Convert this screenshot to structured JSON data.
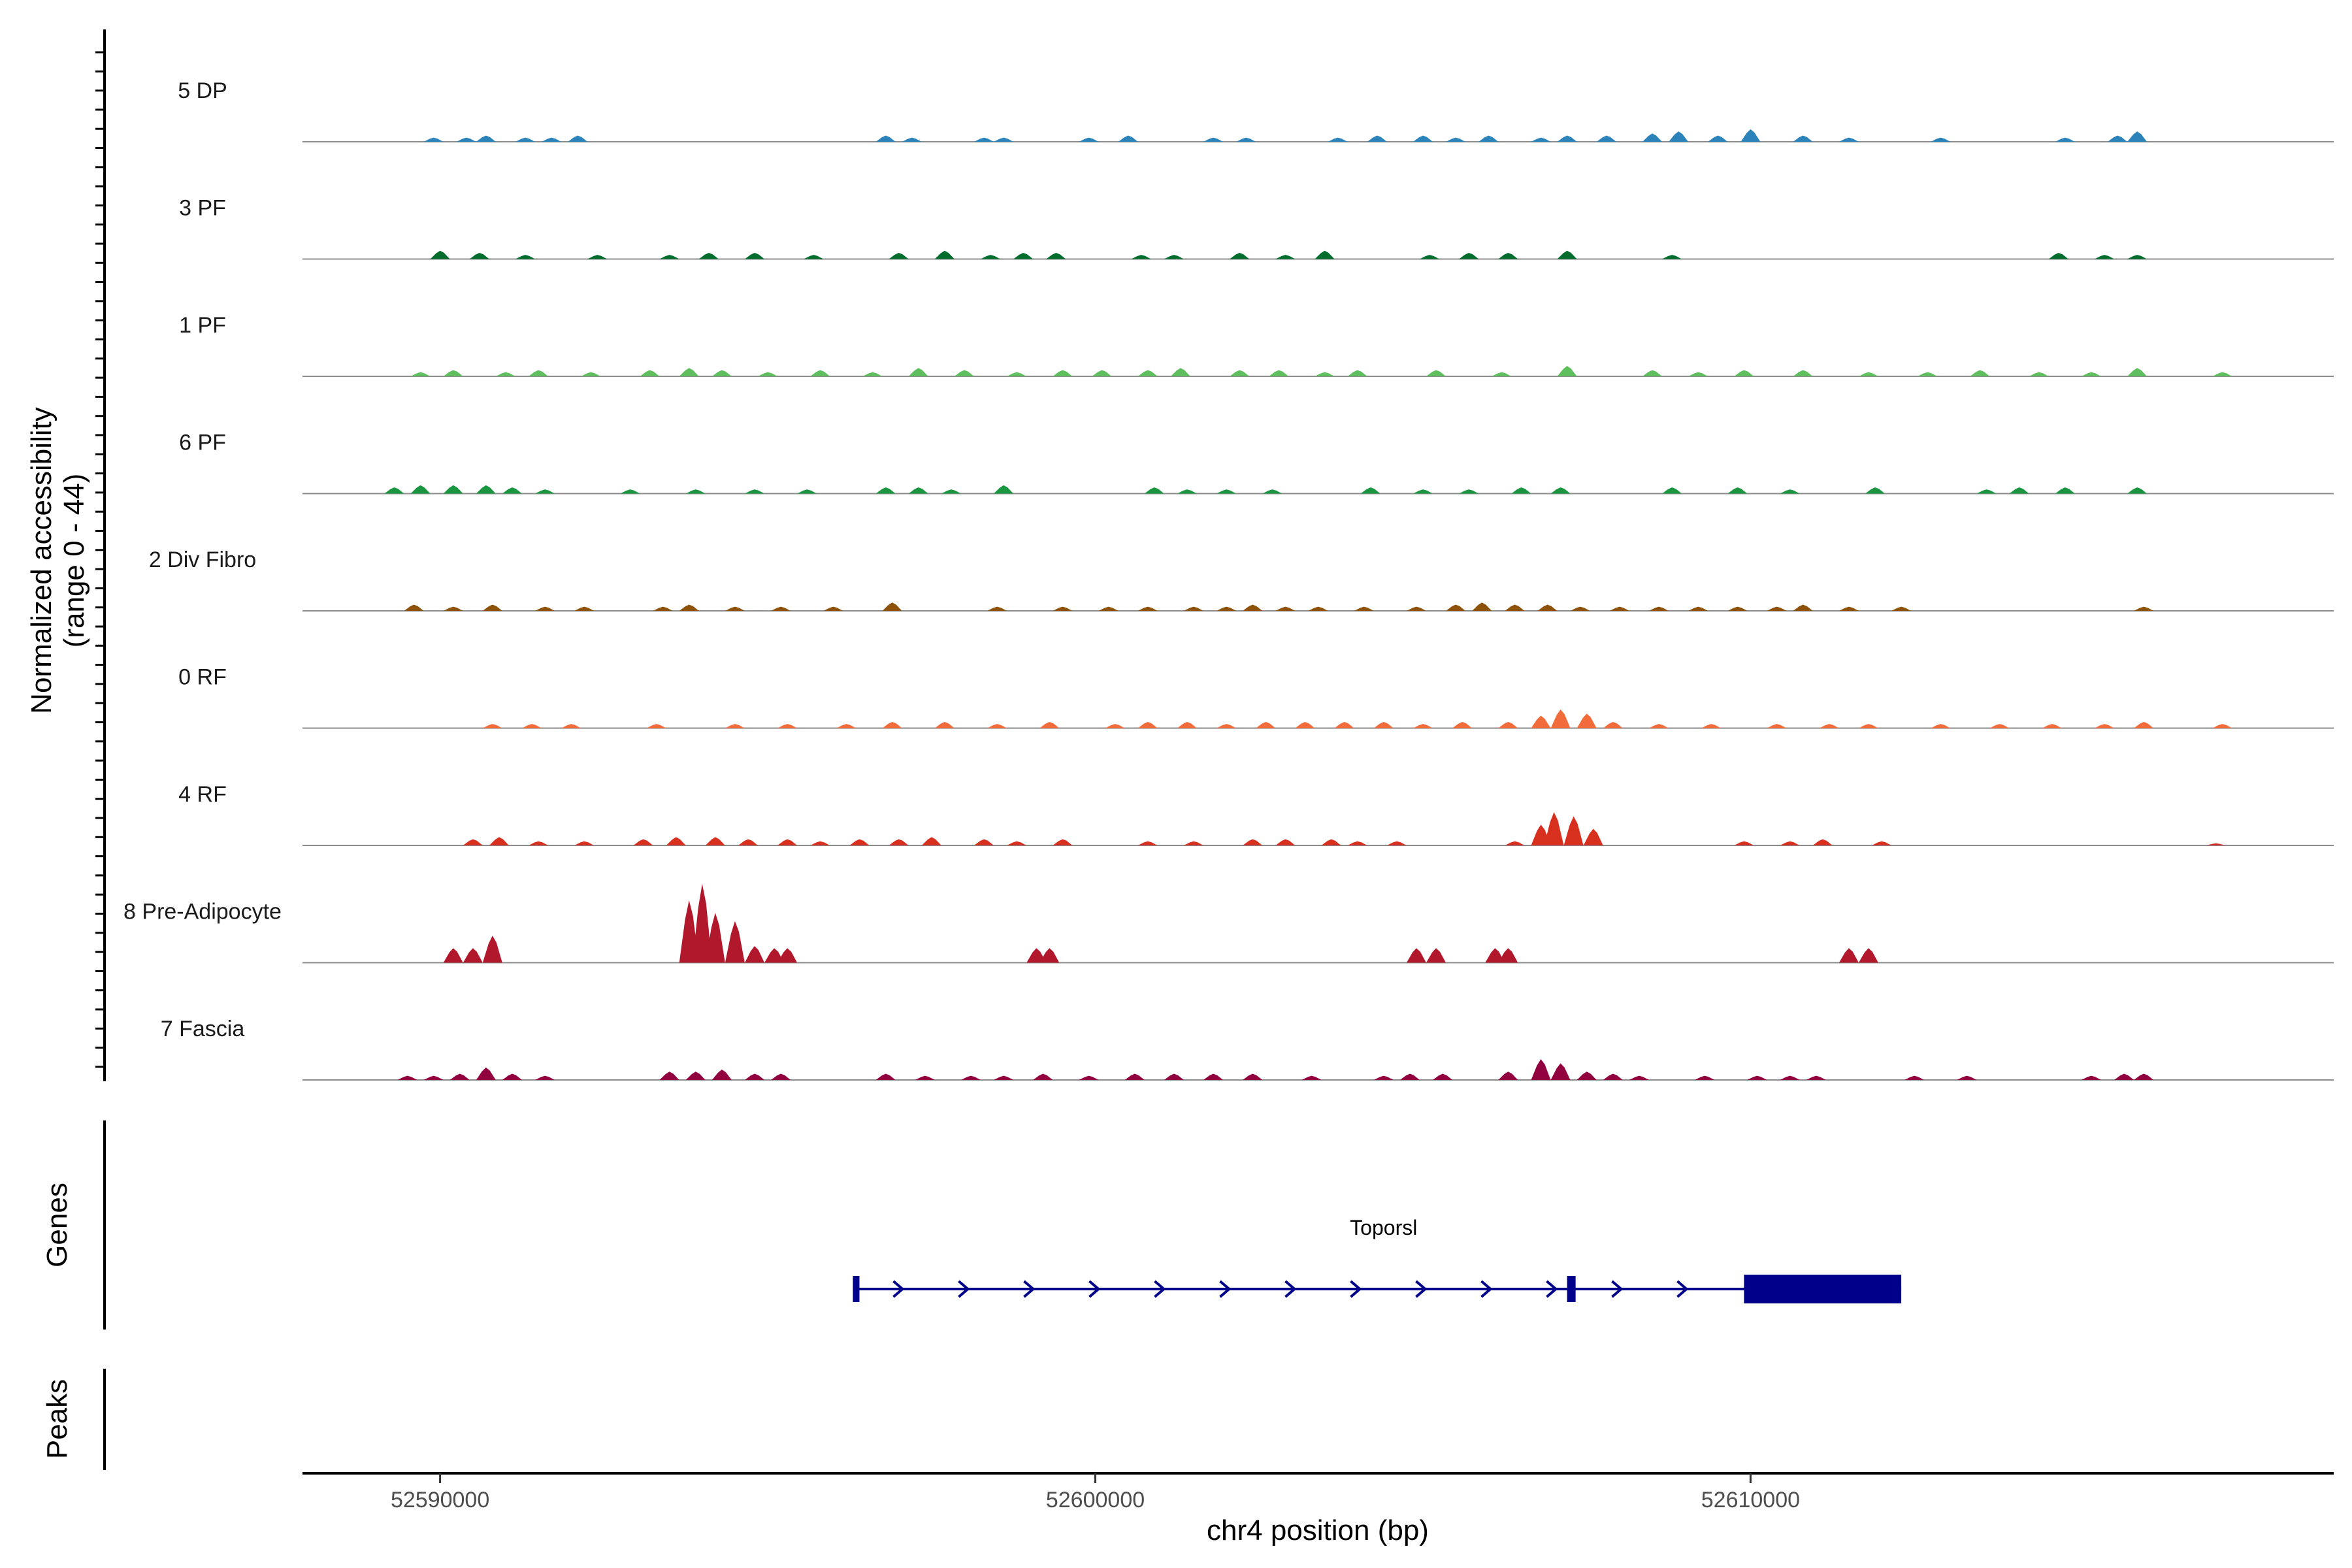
{
  "chart_data": {
    "type": "coverage",
    "y_axis_title_line1": "Normalized accessibility",
    "y_axis_title_line2": "(range 0 - 44)",
    "ylim": [
      0,
      44
    ],
    "x_axis_title": "chr4 position (bp)",
    "xlim": [
      52587900,
      52618900
    ],
    "x_ticks": [
      52590000,
      52600000,
      52610000
    ],
    "x_tick_labels": [
      "52590000",
      "52600000",
      "52610000"
    ],
    "genes_label": "Genes",
    "peaks_label": "Peaks",
    "tracks": [
      {
        "name": "5 DP",
        "color": "#2b83ba",
        "peaks": [
          [
            52589900,
            2
          ],
          [
            52590400,
            2
          ],
          [
            52590700,
            3
          ],
          [
            52591300,
            2
          ],
          [
            52591700,
            2
          ],
          [
            52592100,
            3
          ],
          [
            52596800,
            3
          ],
          [
            52597200,
            2
          ],
          [
            52598300,
            2
          ],
          [
            52598600,
            2
          ],
          [
            52599900,
            2
          ],
          [
            52600500,
            3
          ],
          [
            52601800,
            2
          ],
          [
            52602300,
            2
          ],
          [
            52603700,
            2
          ],
          [
            52604300,
            3
          ],
          [
            52605000,
            3
          ],
          [
            52605500,
            2
          ],
          [
            52606000,
            3
          ],
          [
            52606800,
            2
          ],
          [
            52607200,
            3
          ],
          [
            52607800,
            3
          ],
          [
            52608500,
            4
          ],
          [
            52608900,
            5
          ],
          [
            52609500,
            3
          ],
          [
            52610000,
            6
          ],
          [
            52610800,
            3
          ],
          [
            52611500,
            2
          ],
          [
            52612900,
            2
          ],
          [
            52614800,
            2
          ],
          [
            52615600,
            3
          ],
          [
            52615900,
            5
          ]
        ]
      },
      {
        "name": "3 PF",
        "color": "#006d2c",
        "peaks": [
          [
            52590000,
            4
          ],
          [
            52590600,
            3
          ],
          [
            52591300,
            2
          ],
          [
            52592400,
            2
          ],
          [
            52593500,
            2
          ],
          [
            52594100,
            3
          ],
          [
            52594800,
            3
          ],
          [
            52595700,
            2
          ],
          [
            52597000,
            3
          ],
          [
            52597700,
            4
          ],
          [
            52598400,
            2
          ],
          [
            52598900,
            3
          ],
          [
            52599400,
            3
          ],
          [
            52600700,
            2
          ],
          [
            52601200,
            2
          ],
          [
            52602200,
            3
          ],
          [
            52602900,
            2
          ],
          [
            52603500,
            4
          ],
          [
            52605100,
            2
          ],
          [
            52605700,
            3
          ],
          [
            52606300,
            3
          ],
          [
            52607200,
            4
          ],
          [
            52608800,
            2
          ],
          [
            52614700,
            3
          ],
          [
            52615400,
            2
          ],
          [
            52615900,
            2
          ]
        ]
      },
      {
        "name": "1 PF",
        "color": "#5fbf5f",
        "peaks": [
          [
            52589700,
            2
          ],
          [
            52590200,
            3
          ],
          [
            52591000,
            2
          ],
          [
            52591500,
            3
          ],
          [
            52592300,
            2
          ],
          [
            52593200,
            3
          ],
          [
            52593800,
            4
          ],
          [
            52594300,
            3
          ],
          [
            52595000,
            2
          ],
          [
            52595800,
            3
          ],
          [
            52596600,
            2
          ],
          [
            52597300,
            4
          ],
          [
            52598000,
            3
          ],
          [
            52598800,
            2
          ],
          [
            52599500,
            3
          ],
          [
            52600100,
            3
          ],
          [
            52600800,
            3
          ],
          [
            52601300,
            4
          ],
          [
            52602200,
            3
          ],
          [
            52602800,
            3
          ],
          [
            52603500,
            2
          ],
          [
            52604000,
            3
          ],
          [
            52605200,
            3
          ],
          [
            52606200,
            2
          ],
          [
            52607200,
            5
          ],
          [
            52608500,
            3
          ],
          [
            52609200,
            2
          ],
          [
            52609900,
            3
          ],
          [
            52610800,
            3
          ],
          [
            52611800,
            2
          ],
          [
            52612700,
            2
          ],
          [
            52613500,
            3
          ],
          [
            52614400,
            2
          ],
          [
            52615200,
            2
          ],
          [
            52615900,
            4
          ],
          [
            52617200,
            2
          ]
        ]
      },
      {
        "name": "6 PF",
        "color": "#1a9641",
        "peaks": [
          [
            52589300,
            3
          ],
          [
            52589700,
            4
          ],
          [
            52590200,
            4
          ],
          [
            52590700,
            4
          ],
          [
            52591100,
            3
          ],
          [
            52591600,
            2
          ],
          [
            52592900,
            2
          ],
          [
            52593900,
            2
          ],
          [
            52594800,
            2
          ],
          [
            52595600,
            2
          ],
          [
            52596800,
            3
          ],
          [
            52597300,
            3
          ],
          [
            52597800,
            2
          ],
          [
            52598600,
            4
          ],
          [
            52600900,
            3
          ],
          [
            52601400,
            2
          ],
          [
            52602000,
            2
          ],
          [
            52602700,
            2
          ],
          [
            52604200,
            3
          ],
          [
            52605000,
            2
          ],
          [
            52605700,
            2
          ],
          [
            52606500,
            3
          ],
          [
            52607100,
            3
          ],
          [
            52608800,
            3
          ],
          [
            52609800,
            3
          ],
          [
            52610600,
            2
          ],
          [
            52611900,
            3
          ],
          [
            52613600,
            2
          ],
          [
            52614100,
            3
          ],
          [
            52614800,
            3
          ],
          [
            52615900,
            3
          ]
        ]
      },
      {
        "name": "2 Div Fibro",
        "color": "#8c510a",
        "peaks": [
          [
            52589600,
            3
          ],
          [
            52590200,
            2
          ],
          [
            52590800,
            3
          ],
          [
            52591600,
            2
          ],
          [
            52592200,
            2
          ],
          [
            52593400,
            2
          ],
          [
            52593800,
            3
          ],
          [
            52594500,
            2
          ],
          [
            52595200,
            2
          ],
          [
            52596000,
            2
          ],
          [
            52596900,
            4
          ],
          [
            52598500,
            2
          ],
          [
            52599500,
            2
          ],
          [
            52600200,
            2
          ],
          [
            52600800,
            2
          ],
          [
            52601500,
            2
          ],
          [
            52602000,
            2
          ],
          [
            52602400,
            3
          ],
          [
            52602900,
            2
          ],
          [
            52603400,
            2
          ],
          [
            52604100,
            2
          ],
          [
            52604900,
            2
          ],
          [
            52605500,
            3
          ],
          [
            52605900,
            4
          ],
          [
            52606400,
            3
          ],
          [
            52606900,
            3
          ],
          [
            52607400,
            2
          ],
          [
            52608000,
            2
          ],
          [
            52608600,
            2
          ],
          [
            52609200,
            2
          ],
          [
            52609800,
            2
          ],
          [
            52610400,
            2
          ],
          [
            52610800,
            3
          ],
          [
            52611500,
            2
          ],
          [
            52612300,
            2
          ],
          [
            52616000,
            2
          ]
        ]
      },
      {
        "name": "0 RF",
        "color": "#f26b3a",
        "peaks": [
          [
            52590800,
            2
          ],
          [
            52591400,
            2
          ],
          [
            52592000,
            2
          ],
          [
            52593300,
            2
          ],
          [
            52594500,
            2
          ],
          [
            52595300,
            2
          ],
          [
            52596200,
            2
          ],
          [
            52596900,
            3
          ],
          [
            52597700,
            3
          ],
          [
            52598500,
            2
          ],
          [
            52599300,
            3
          ],
          [
            52600300,
            2
          ],
          [
            52600800,
            3
          ],
          [
            52601400,
            3
          ],
          [
            52602000,
            2
          ],
          [
            52602600,
            3
          ],
          [
            52603200,
            3
          ],
          [
            52603800,
            3
          ],
          [
            52604400,
            3
          ],
          [
            52605000,
            2
          ],
          [
            52605600,
            3
          ],
          [
            52606300,
            3
          ],
          [
            52606800,
            6
          ],
          [
            52607100,
            9
          ],
          [
            52607500,
            7
          ],
          [
            52607900,
            3
          ],
          [
            52608600,
            2
          ],
          [
            52609400,
            2
          ],
          [
            52610400,
            2
          ],
          [
            52611200,
            2
          ],
          [
            52611800,
            2
          ],
          [
            52612900,
            2
          ],
          [
            52613800,
            2
          ],
          [
            52614600,
            2
          ],
          [
            52615400,
            2
          ],
          [
            52616000,
            3
          ],
          [
            52617200,
            2
          ]
        ]
      },
      {
        "name": "4 RF",
        "color": "#d7301f",
        "peaks": [
          [
            52590500,
            3
          ],
          [
            52590900,
            4
          ],
          [
            52591500,
            2
          ],
          [
            52592200,
            2
          ],
          [
            52593100,
            3
          ],
          [
            52593600,
            4
          ],
          [
            52594200,
            4
          ],
          [
            52594700,
            3
          ],
          [
            52595300,
            3
          ],
          [
            52595800,
            2
          ],
          [
            52596400,
            3
          ],
          [
            52597000,
            3
          ],
          [
            52597500,
            4
          ],
          [
            52598300,
            3
          ],
          [
            52598800,
            2
          ],
          [
            52599500,
            3
          ],
          [
            52600800,
            2
          ],
          [
            52601500,
            2
          ],
          [
            52602400,
            3
          ],
          [
            52602900,
            3
          ],
          [
            52603600,
            3
          ],
          [
            52604000,
            2
          ],
          [
            52604600,
            2
          ],
          [
            52606400,
            2
          ],
          [
            52606800,
            10
          ],
          [
            52607000,
            16
          ],
          [
            52607300,
            14
          ],
          [
            52607600,
            8
          ],
          [
            52609900,
            2
          ],
          [
            52610600,
            2
          ],
          [
            52611100,
            3
          ],
          [
            52612000,
            2
          ],
          [
            52617100,
            1
          ]
        ]
      },
      {
        "name": "8 Pre-Adipocyte",
        "color": "#b2182b",
        "peaks": [
          [
            52590200,
            7
          ],
          [
            52590500,
            7
          ],
          [
            52590800,
            13
          ],
          [
            52593800,
            30
          ],
          [
            52594000,
            38
          ],
          [
            52594200,
            24
          ],
          [
            52594500,
            20
          ],
          [
            52594800,
            8
          ],
          [
            52595100,
            7
          ],
          [
            52595300,
            7
          ],
          [
            52599100,
            7
          ],
          [
            52599300,
            7
          ],
          [
            52604900,
            7
          ],
          [
            52605200,
            7
          ],
          [
            52606100,
            7
          ],
          [
            52606300,
            7
          ],
          [
            52611500,
            7
          ],
          [
            52611800,
            7
          ]
        ]
      },
      {
        "name": "7 Fascia",
        "color": "#91003f",
        "peaks": [
          [
            52589500,
            2
          ],
          [
            52589900,
            2
          ],
          [
            52590300,
            3
          ],
          [
            52590700,
            6
          ],
          [
            52591100,
            3
          ],
          [
            52591600,
            2
          ],
          [
            52593500,
            4
          ],
          [
            52593900,
            4
          ],
          [
            52594300,
            5
          ],
          [
            52594800,
            3
          ],
          [
            52595200,
            3
          ],
          [
            52596800,
            3
          ],
          [
            52597400,
            2
          ],
          [
            52598100,
            2
          ],
          [
            52598600,
            2
          ],
          [
            52599200,
            3
          ],
          [
            52599900,
            2
          ],
          [
            52600600,
            3
          ],
          [
            52601200,
            3
          ],
          [
            52601800,
            3
          ],
          [
            52602400,
            3
          ],
          [
            52603300,
            2
          ],
          [
            52604400,
            2
          ],
          [
            52604800,
            3
          ],
          [
            52605300,
            3
          ],
          [
            52606300,
            4
          ],
          [
            52606800,
            10
          ],
          [
            52607100,
            8
          ],
          [
            52607500,
            4
          ],
          [
            52607900,
            3
          ],
          [
            52608300,
            2
          ],
          [
            52609300,
            2
          ],
          [
            52610100,
            2
          ],
          [
            52610600,
            2
          ],
          [
            52611000,
            2
          ],
          [
            52612500,
            2
          ],
          [
            52613300,
            2
          ],
          [
            52615200,
            2
          ],
          [
            52615700,
            3
          ],
          [
            52616000,
            3
          ]
        ]
      }
    ],
    "gene": {
      "name": "Toporsl",
      "color": "#00008b",
      "strand": "+",
      "start": 52596300,
      "end": 52612300,
      "exons": [
        [
          52596300,
          52596400
        ],
        [
          52607200,
          52607330
        ],
        [
          52609900,
          52612300
        ]
      ]
    }
  }
}
